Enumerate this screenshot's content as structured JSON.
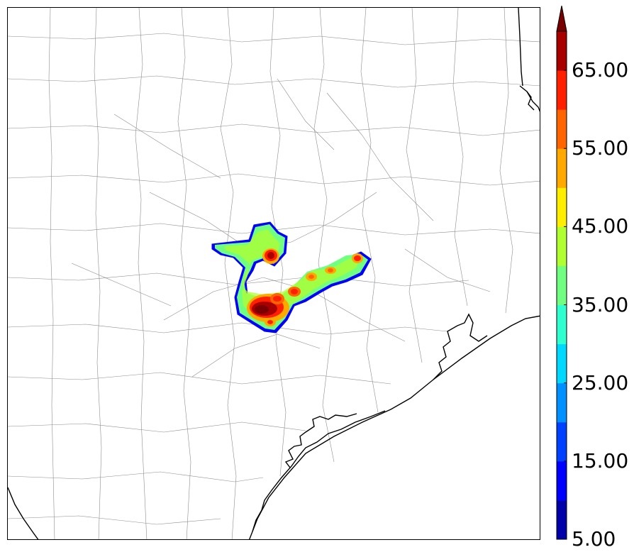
{
  "colorbar": {
    "levels": [
      5,
      10,
      15,
      20,
      25,
      30,
      35,
      40,
      45,
      50,
      55,
      60,
      65,
      70
    ],
    "extend": "max",
    "colors": [
      "#0000a8",
      "#0000ff",
      "#0040ff",
      "#0090ff",
      "#00d8ff",
      "#30ffd0",
      "#70ff80",
      "#b0ff30",
      "#ffee00",
      "#ffa800",
      "#ff6400",
      "#ff2000",
      "#a80000",
      "#780000"
    ],
    "tick_labels": [
      "5.00",
      "15.00",
      "25.00",
      "35.00",
      "45.00",
      "55.00",
      "65.00"
    ]
  },
  "map": {
    "coastline_color": "#000000",
    "county_line_color": "#8c8c8c",
    "field_peak_value": 70
  }
}
